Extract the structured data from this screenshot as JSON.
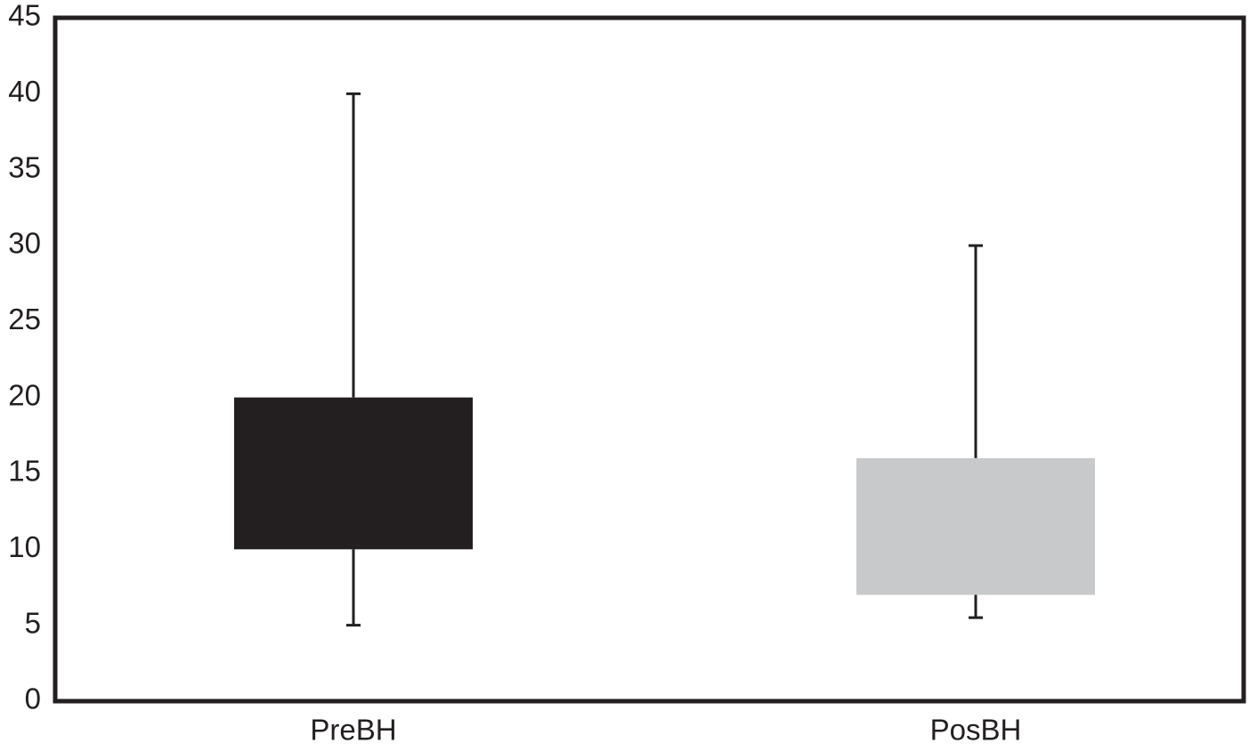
{
  "chart_data": {
    "type": "box",
    "categories": [
      "PreBH",
      "PosBH"
    ],
    "boxes": [
      {
        "low": 5,
        "q1": 10,
        "q3": 20,
        "high": 40,
        "color": "#231f20"
      },
      {
        "low": 5.5,
        "q1": 7,
        "q3": 16,
        "high": 30,
        "color": "#c8c9ca"
      }
    ],
    "ylim": [
      0,
      45
    ],
    "yticks": [
      0,
      5,
      10,
      15,
      20,
      25,
      30,
      35,
      40,
      45
    ],
    "grid": false
  }
}
